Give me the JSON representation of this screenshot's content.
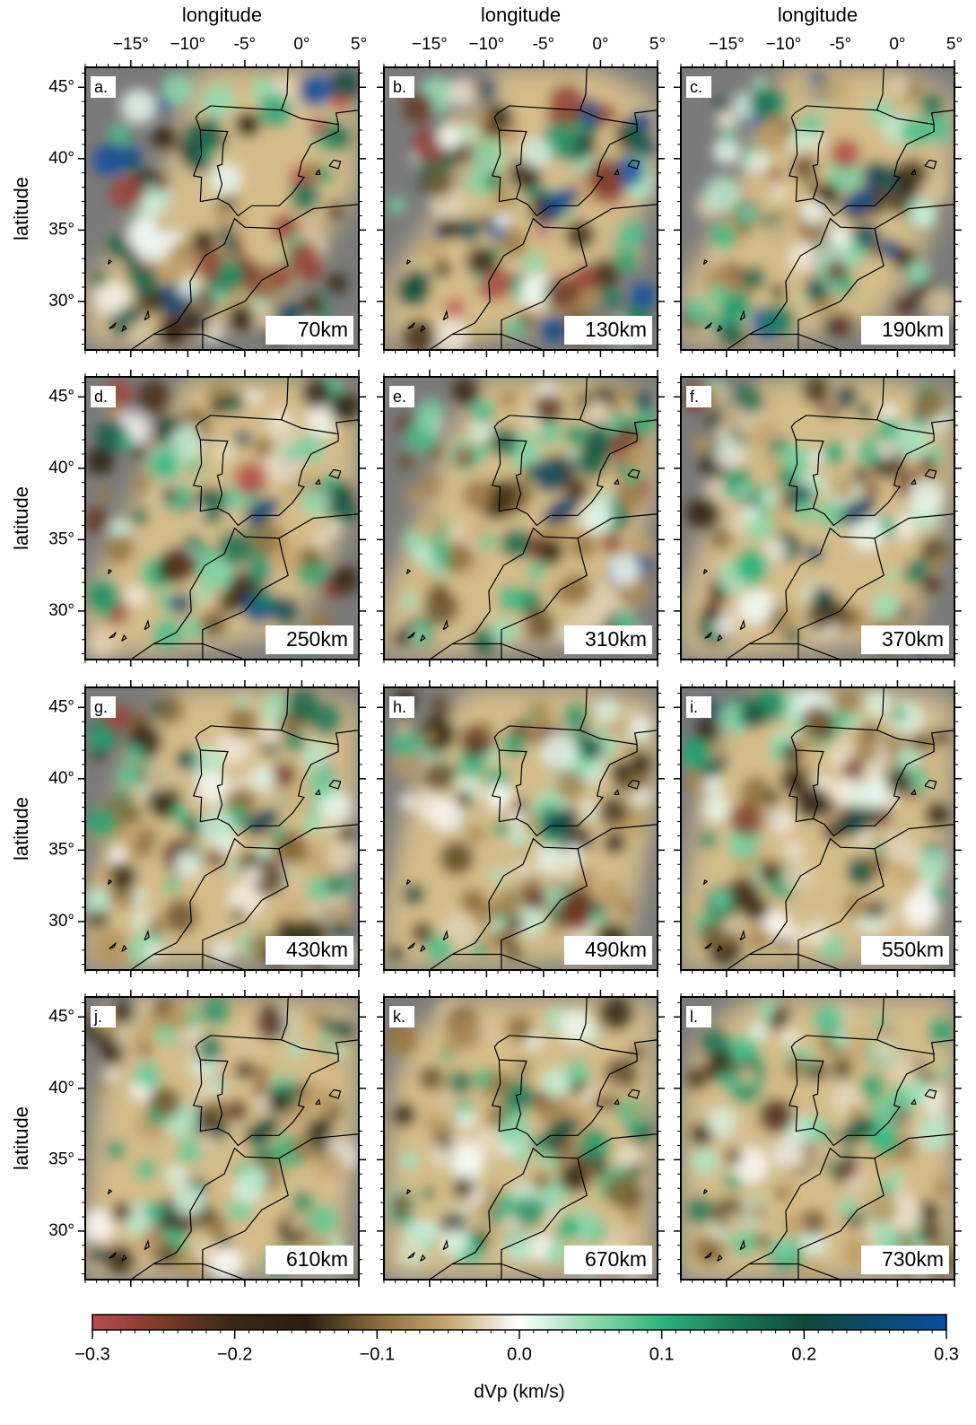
{
  "x_label": "longitude",
  "y_label": "latitude",
  "xlim": [
    -19,
    5
  ],
  "ylim": [
    26.6,
    46.4
  ],
  "xticks": [
    {
      "value": -15,
      "label": "−15°"
    },
    {
      "value": -10,
      "label": "−10°"
    },
    {
      "value": -5,
      "label": "-5°"
    },
    {
      "value": 0,
      "label": "0°"
    },
    {
      "value": 5,
      "label": "5°"
    }
  ],
  "yticks": [
    {
      "value": 30,
      "label": "30°"
    },
    {
      "value": 35,
      "label": "35°"
    },
    {
      "value": 40,
      "label": "40°"
    },
    {
      "value": 45,
      "label": "45°"
    }
  ],
  "panels": [
    {
      "label": "a.",
      "depth": "70km"
    },
    {
      "label": "b.",
      "depth": "130km"
    },
    {
      "label": "c.",
      "depth": "190km"
    },
    {
      "label": "d.",
      "depth": "250km"
    },
    {
      "label": "e.",
      "depth": "310km"
    },
    {
      "label": "f.",
      "depth": "370km"
    },
    {
      "label": "g.",
      "depth": "430km"
    },
    {
      "label": "h.",
      "depth": "490km"
    },
    {
      "label": "i.",
      "depth": "550km"
    },
    {
      "label": "j.",
      "depth": "610km"
    },
    {
      "label": "k.",
      "depth": "670km"
    },
    {
      "label": "l.",
      "depth": "730km"
    }
  ],
  "colorbar": {
    "label": "dVp (km/s)",
    "lim": [
      -0.3,
      0.3
    ],
    "ticks": [
      {
        "value": -0.3,
        "label": "−0.3"
      },
      {
        "value": -0.2,
        "label": "−0.2"
      },
      {
        "value": -0.1,
        "label": "−0.1"
      },
      {
        "value": 0,
        "label": "0.0"
      },
      0.1,
      0.2,
      0.3
    ],
    "colors": [
      "#bb4b4b",
      "#7a3a26",
      "#3a2814",
      "#2a1e10",
      "#8a6a38",
      "#c8a870",
      "#ffffff",
      "#8fdcb0",
      "#2cb47e",
      "#1a7a58",
      "#0d4a3a",
      "#0b4a6e",
      "#0a4ea0"
    ]
  }
}
